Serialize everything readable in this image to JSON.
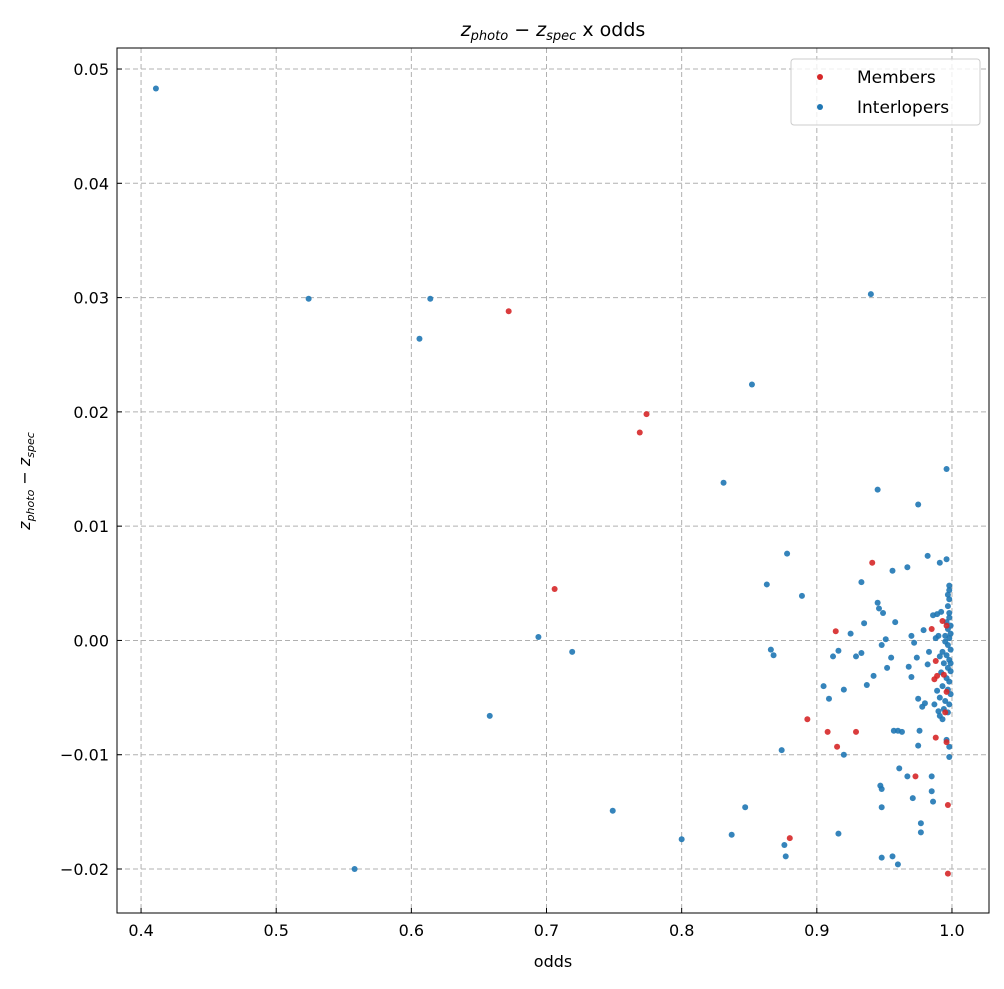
{
  "chart_data": {
    "type": "scatter",
    "title": "z_photo − z_spec x odds",
    "title_parts": [
      {
        "text": "z",
        "italic": true,
        "sub": false
      },
      {
        "text": "photo",
        "italic": true,
        "sub": true
      },
      {
        "text": " − ",
        "italic": false,
        "sub": false
      },
      {
        "text": "z",
        "italic": true,
        "sub": false
      },
      {
        "text": "spec",
        "italic": true,
        "sub": true
      },
      {
        "text": " x odds",
        "italic": false,
        "sub": false
      }
    ],
    "xlabel": "odds",
    "ylabel": "z_photo − z_spec",
    "ylabel_parts": [
      {
        "text": "z",
        "italic": true,
        "sub": false
      },
      {
        "text": "photo",
        "italic": true,
        "sub": true
      },
      {
        "text": " − ",
        "italic": false,
        "sub": false
      },
      {
        "text": "z",
        "italic": true,
        "sub": false
      },
      {
        "text": "spec",
        "italic": true,
        "sub": true
      }
    ],
    "xlim": [
      0.3822,
      1.0274
    ],
    "ylim": [
      -0.02385,
      0.05184
    ],
    "xticks": [
      0.4,
      0.5,
      0.6,
      0.7,
      0.8,
      0.9,
      1.0
    ],
    "xtick_labels": [
      "0.4",
      "0.5",
      "0.6",
      "0.7",
      "0.8",
      "0.9",
      "1.0"
    ],
    "yticks": [
      -0.02,
      -0.01,
      0.0,
      0.01,
      0.02,
      0.03,
      0.04,
      0.05
    ],
    "ytick_labels": [
      "−0.02",
      "−0.01",
      "0.00",
      "0.01",
      "0.02",
      "0.03",
      "0.04",
      "0.05"
    ],
    "grid": true,
    "legend_position": "top-right",
    "series": [
      {
        "name": "Members",
        "color": "#d62728",
        "points": [
          [
            0.672,
            0.0288
          ],
          [
            0.769,
            0.0182
          ],
          [
            0.774,
            0.0198
          ],
          [
            0.706,
            0.0045
          ],
          [
            0.914,
            0.0008
          ],
          [
            0.941,
            0.0068
          ],
          [
            0.893,
            -0.0069
          ],
          [
            0.908,
            -0.008
          ],
          [
            0.915,
            -0.0093
          ],
          [
            0.929,
            -0.008
          ],
          [
            0.88,
            -0.0173
          ],
          [
            0.973,
            -0.0119
          ],
          [
            0.997,
            -0.0144
          ],
          [
            0.997,
            -0.0204
          ],
          [
            0.988,
            -0.0085
          ],
          [
            0.996,
            -0.0089
          ],
          [
            0.993,
            0.0017
          ],
          [
            0.996,
            0.0013
          ],
          [
            0.988,
            -0.0018
          ],
          [
            0.987,
            -0.0034
          ],
          [
            0.989,
            -0.0031
          ],
          [
            0.994,
            -0.003
          ],
          [
            0.996,
            -0.0045
          ],
          [
            0.995,
            -0.0063
          ],
          [
            0.985,
            0.001
          ]
        ]
      },
      {
        "name": "Interlopers",
        "color": "#1f77b4",
        "points": [
          [
            0.411,
            0.0483
          ],
          [
            0.524,
            0.0299
          ],
          [
            0.614,
            0.0299
          ],
          [
            0.606,
            0.0264
          ],
          [
            0.852,
            0.0224
          ],
          [
            0.94,
            0.0303
          ],
          [
            0.831,
            0.0138
          ],
          [
            0.996,
            0.015
          ],
          [
            0.945,
            0.0132
          ],
          [
            0.975,
            0.0119
          ],
          [
            0.878,
            0.0076
          ],
          [
            0.982,
            0.0074
          ],
          [
            0.863,
            0.0049
          ],
          [
            0.889,
            0.0039
          ],
          [
            0.933,
            0.0051
          ],
          [
            0.956,
            0.0061
          ],
          [
            0.967,
            0.0064
          ],
          [
            0.694,
            0.0003
          ],
          [
            0.719,
            -0.001
          ],
          [
            0.866,
            -0.0008
          ],
          [
            0.868,
            -0.0013
          ],
          [
            0.658,
            -0.0066
          ],
          [
            0.749,
            -0.0149
          ],
          [
            0.558,
            -0.02
          ],
          [
            0.8,
            -0.0174
          ],
          [
            0.847,
            -0.0146
          ],
          [
            0.837,
            -0.017
          ],
          [
            0.874,
            -0.0096
          ],
          [
            0.876,
            -0.0179
          ],
          [
            0.877,
            -0.0189
          ],
          [
            0.916,
            -0.0169
          ],
          [
            0.92,
            -0.01
          ],
          [
            0.909,
            -0.0051
          ],
          [
            0.905,
            -0.004
          ],
          [
            0.92,
            -0.0043
          ],
          [
            0.912,
            -0.0014
          ],
          [
            0.916,
            -0.0009
          ],
          [
            0.925,
            0.0006
          ],
          [
            0.929,
            -0.0014
          ],
          [
            0.933,
            -0.0011
          ],
          [
            0.935,
            0.0015
          ],
          [
            0.937,
            -0.0039
          ],
          [
            0.942,
            -0.0031
          ],
          [
            0.945,
            0.0033
          ],
          [
            0.946,
            0.0028
          ],
          [
            0.949,
            0.0024
          ],
          [
            0.948,
            -0.0004
          ],
          [
            0.951,
            0.0001
          ],
          [
            0.952,
            -0.0024
          ],
          [
            0.955,
            -0.0015
          ],
          [
            0.958,
            0.0016
          ],
          [
            0.957,
            -0.0079
          ],
          [
            0.96,
            -0.0079
          ],
          [
            0.963,
            -0.008
          ],
          [
            0.961,
            -0.0112
          ],
          [
            0.967,
            -0.0119
          ],
          [
            0.971,
            -0.0138
          ],
          [
            0.975,
            -0.0092
          ],
          [
            0.976,
            -0.0079
          ],
          [
            0.975,
            -0.0051
          ],
          [
            0.977,
            -0.016
          ],
          [
            0.977,
            -0.0168
          ],
          [
            0.947,
            -0.0127
          ],
          [
            0.948,
            -0.013
          ],
          [
            0.948,
            -0.0146
          ],
          [
            0.948,
            -0.019
          ],
          [
            0.956,
            -0.0189
          ],
          [
            0.96,
            -0.0196
          ],
          [
            0.985,
            -0.0119
          ],
          [
            0.985,
            -0.0132
          ],
          [
            0.986,
            -0.0141
          ],
          [
            0.97,
            0.0004
          ],
          [
            0.972,
            -0.0002
          ],
          [
            0.968,
            -0.0023
          ],
          [
            0.97,
            -0.0032
          ],
          [
            0.974,
            -0.0015
          ],
          [
            0.978,
            -0.0058
          ],
          [
            0.98,
            -0.0055
          ],
          [
            0.982,
            -0.0021
          ],
          [
            0.983,
            -0.001
          ],
          [
            0.979,
            0.0009
          ],
          [
            0.986,
            0.0022
          ],
          [
            0.989,
            0.0023
          ],
          [
            0.991,
            0.0068
          ],
          [
            0.996,
            0.0071
          ],
          [
            0.998,
            0.0048
          ],
          [
            0.998,
            0.0044
          ],
          [
            0.997,
            0.004
          ],
          [
            0.998,
            0.0036
          ],
          [
            0.997,
            0.003
          ],
          [
            0.998,
            0.0024
          ],
          [
            0.998,
            0.002
          ],
          [
            0.996,
            0.0016
          ],
          [
            0.997,
            0.001
          ],
          [
            0.999,
            0.0006
          ],
          [
            0.998,
            0.0002
          ],
          [
            0.995,
            -0.0001
          ],
          [
            0.997,
            -0.0004
          ],
          [
            0.999,
            -0.0008
          ],
          [
            0.993,
            -0.001
          ],
          [
            0.996,
            -0.0013
          ],
          [
            0.998,
            -0.0017
          ],
          [
            0.994,
            -0.002
          ],
          [
            0.997,
            -0.0024
          ],
          [
            0.999,
            -0.0027
          ],
          [
            0.992,
            -0.0028
          ],
          [
            0.996,
            -0.0033
          ],
          [
            0.998,
            -0.0036
          ],
          [
            0.993,
            -0.004
          ],
          [
            0.997,
            -0.0043
          ],
          [
            0.999,
            -0.0047
          ],
          [
            0.991,
            -0.005
          ],
          [
            0.995,
            -0.0053
          ],
          [
            0.998,
            -0.0056
          ],
          [
            0.994,
            -0.006
          ],
          [
            0.997,
            -0.0063
          ],
          [
            0.991,
            -0.0066
          ],
          [
            0.993,
            -0.0069
          ],
          [
            0.996,
            -0.0087
          ],
          [
            0.998,
            -0.0093
          ],
          [
            0.998,
            -0.0102
          ],
          [
            0.99,
            0.0004
          ],
          [
            0.988,
            0.0002
          ],
          [
            0.991,
            -0.0014
          ],
          [
            0.989,
            -0.0044
          ],
          [
            0.987,
            -0.0056
          ],
          [
            0.99,
            -0.0062
          ],
          [
            0.992,
            0.0025
          ],
          [
            0.995,
            0.0004
          ],
          [
            0.999,
            0.0013
          ],
          [
            0.999,
            -0.002
          ]
        ]
      }
    ]
  }
}
